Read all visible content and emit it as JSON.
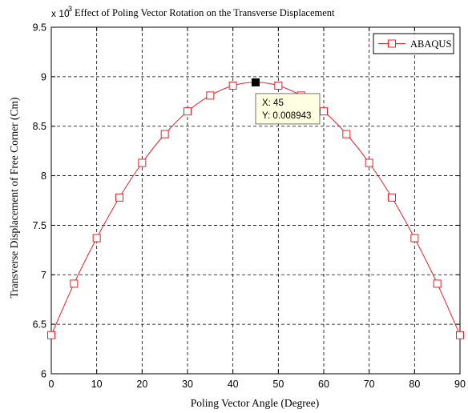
{
  "chart_data": {
    "type": "line",
    "title": "Effect of Poling Vector Rotation on the Transverse Displacement",
    "xlabel": "Poling Vector Angle (Degree)",
    "ylabel": "Transverse Displacement of Free Corner (Cm)",
    "y_exponent_label": "x 10",
    "y_exponent_power": "-3",
    "xlim": [
      0,
      90
    ],
    "ylim": [
      6,
      9.5
    ],
    "y_scale_factor": 0.001,
    "x_ticks": [
      0,
      10,
      20,
      30,
      40,
      50,
      60,
      70,
      80,
      90
    ],
    "y_ticks": [
      6,
      6.5,
      7,
      7.5,
      8,
      8.5,
      9,
      9.5
    ],
    "grid": true,
    "legend_position": "top-right",
    "series": [
      {
        "name": "ABAQUS",
        "color": "#e8202a",
        "marker": "square",
        "x": [
          0,
          5,
          10,
          15,
          20,
          25,
          30,
          35,
          40,
          45,
          50,
          55,
          60,
          65,
          70,
          75,
          80,
          85,
          90
        ],
        "y": [
          6.39,
          6.91,
          7.37,
          7.78,
          8.13,
          8.42,
          8.65,
          8.81,
          8.91,
          8.943,
          8.91,
          8.81,
          8.65,
          8.42,
          8.13,
          7.78,
          7.37,
          6.91,
          6.39
        ]
      }
    ],
    "datatip": {
      "x": 45,
      "y": 8.943,
      "x_text": "X: 45",
      "y_text": "Y: 0.008943"
    }
  }
}
